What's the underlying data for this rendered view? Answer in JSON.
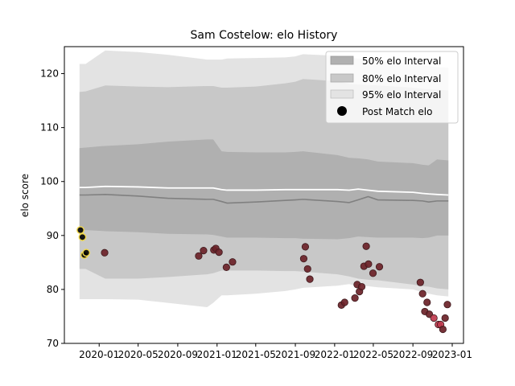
{
  "chart_data": {
    "type": "line",
    "title": "Sam Costelow: elo History",
    "xlabel": "",
    "ylabel": "elo score",
    "ylim": [
      70,
      125
    ],
    "xlim": [
      "2019-09-15",
      "2023-02-05"
    ],
    "yticks": [
      70,
      80,
      90,
      100,
      110,
      120
    ],
    "xticks": [
      "2020-01",
      "2020-05",
      "2020-09",
      "2021-01",
      "2021-05",
      "2021-09",
      "2022-01",
      "2022-05",
      "2022-09",
      "2023-01"
    ],
    "xtick_dates": [
      "2020-01-01",
      "2020-05-01",
      "2020-09-01",
      "2021-01-01",
      "2021-05-01",
      "2021-09-01",
      "2022-01-01",
      "2022-05-01",
      "2022-09-01",
      "2023-01-01"
    ],
    "grid": false,
    "legend": {
      "placement": "top-right",
      "entries": [
        "50% elo Interval",
        "80% elo Interval",
        "95% elo Interval",
        "Post Match elo"
      ]
    },
    "colors": {
      "band50": "#b0b0b0",
      "band80": "#c8c8c8",
      "band95": "#e3e3e3",
      "mean_line": "#ffffff",
      "median_line": "#808080",
      "marker": "#6b2228",
      "marker_recent": "#c0394e",
      "marker_first": "#f2d94c"
    },
    "bands": {
      "x": [
        "2019-11-01",
        "2019-11-20",
        "2020-01-20",
        "2020-05-01",
        "2020-08-01",
        "2020-12-01",
        "2020-12-20",
        "2021-01-15",
        "2021-02-01",
        "2021-05-01",
        "2021-08-01",
        "2021-09-01",
        "2021-09-25",
        "2022-01-10",
        "2022-02-15",
        "2022-03-15",
        "2022-04-15",
        "2022-05-15",
        "2022-09-01",
        "2022-10-01",
        "2022-10-20",
        "2022-11-15",
        "2022-12-20"
      ],
      "mean": [
        98.9,
        98.9,
        99.1,
        99.0,
        98.8,
        98.8,
        98.8,
        98.5,
        98.4,
        98.4,
        98.5,
        98.5,
        98.5,
        98.5,
        98.4,
        98.6,
        98.4,
        98.2,
        98.0,
        97.8,
        97.7,
        97.6,
        97.5
      ],
      "median": [
        97.5,
        97.5,
        97.6,
        97.3,
        96.9,
        96.7,
        96.7,
        96.3,
        96.0,
        96.2,
        96.5,
        96.6,
        96.7,
        96.3,
        96.1,
        96.6,
        97.2,
        96.6,
        96.5,
        96.4,
        96.2,
        96.4,
        96.4
      ],
      "p25": [
        91.0,
        91.0,
        90.8,
        90.6,
        90.3,
        90.2,
        90.1,
        89.8,
        89.6,
        89.6,
        89.5,
        89.5,
        89.4,
        89.3,
        89.5,
        89.8,
        89.7,
        89.6,
        89.6,
        89.5,
        89.6,
        90.0,
        90.0
      ],
      "p75": [
        106.2,
        106.3,
        106.6,
        106.9,
        107.4,
        107.8,
        107.8,
        105.6,
        105.5,
        105.4,
        105.4,
        105.5,
        105.6,
        104.9,
        104.4,
        104.3,
        104.1,
        103.7,
        103.4,
        103.1,
        103.0,
        104.1,
        103.9
      ],
      "p10": [
        83.8,
        83.8,
        82.0,
        82.0,
        82.3,
        82.8,
        83.0,
        83.5,
        83.5,
        83.5,
        83.4,
        83.4,
        83.3,
        82.8,
        82.4,
        82.0,
        81.8,
        81.7,
        80.9,
        80.6,
        80.5,
        80.2,
        80.0
      ],
      "p90": [
        116.6,
        116.7,
        117.8,
        117.6,
        117.5,
        117.7,
        117.7,
        117.4,
        117.4,
        117.6,
        118.2,
        118.5,
        119.0,
        118.6,
        118.1,
        118.0,
        117.9,
        117.8,
        117.4,
        117.2,
        117.1,
        117.0,
        116.9
      ],
      "p025": [
        78.2,
        78.2,
        78.2,
        78.1,
        77.5,
        76.7,
        77.5,
        78.9,
        78.9,
        79.2,
        79.7,
        80.0,
        80.3,
        80.7,
        81.0,
        80.6,
        80.6,
        80.4,
        80.0,
        79.5,
        79.2,
        78.9,
        78.7
      ],
      "p975": [
        121.8,
        121.8,
        124.3,
        124.0,
        123.5,
        122.6,
        122.6,
        122.6,
        122.8,
        122.9,
        123.0,
        123.2,
        123.6,
        123.3,
        122.9,
        122.8,
        122.6,
        122.3,
        121.9,
        121.6,
        121.4,
        121.2,
        121.1
      ]
    },
    "points": [
      {
        "date": "2019-11-04",
        "elo": 91.0,
        "color": "marker_first"
      },
      {
        "date": "2019-11-10",
        "elo": 89.7,
        "color": "marker_first"
      },
      {
        "date": "2019-11-16",
        "elo": 86.4,
        "color": "marker_first"
      },
      {
        "date": "2019-11-22",
        "elo": 86.8,
        "color": "marker_first"
      },
      {
        "date": "2020-01-18",
        "elo": 86.8,
        "color": "marker"
      },
      {
        "date": "2020-11-05",
        "elo": 86.2,
        "color": "marker"
      },
      {
        "date": "2020-11-20",
        "elo": 87.2,
        "color": "marker"
      },
      {
        "date": "2020-12-22",
        "elo": 87.3,
        "color": "marker"
      },
      {
        "date": "2020-12-28",
        "elo": 87.6,
        "color": "marker"
      },
      {
        "date": "2021-01-07",
        "elo": 86.9,
        "color": "marker"
      },
      {
        "date": "2021-01-30",
        "elo": 84.1,
        "color": "marker"
      },
      {
        "date": "2021-02-18",
        "elo": 85.1,
        "color": "marker"
      },
      {
        "date": "2021-09-27",
        "elo": 85.7,
        "color": "marker"
      },
      {
        "date": "2021-10-02",
        "elo": 87.9,
        "color": "marker"
      },
      {
        "date": "2021-10-09",
        "elo": 83.8,
        "color": "marker"
      },
      {
        "date": "2021-10-16",
        "elo": 81.9,
        "color": "marker"
      },
      {
        "date": "2022-01-22",
        "elo": 77.1,
        "color": "marker"
      },
      {
        "date": "2022-02-01",
        "elo": 77.6,
        "color": "marker"
      },
      {
        "date": "2022-03-05",
        "elo": 78.4,
        "color": "marker"
      },
      {
        "date": "2022-03-12",
        "elo": 80.9,
        "color": "marker"
      },
      {
        "date": "2022-03-19",
        "elo": 79.6,
        "color": "marker"
      },
      {
        "date": "2022-03-26",
        "elo": 80.5,
        "color": "marker"
      },
      {
        "date": "2022-04-02",
        "elo": 84.3,
        "color": "marker"
      },
      {
        "date": "2022-04-09",
        "elo": 88.0,
        "color": "marker"
      },
      {
        "date": "2022-04-16",
        "elo": 84.7,
        "color": "marker"
      },
      {
        "date": "2022-04-30",
        "elo": 83.0,
        "color": "marker"
      },
      {
        "date": "2022-05-20",
        "elo": 84.2,
        "color": "marker"
      },
      {
        "date": "2022-09-24",
        "elo": 81.3,
        "color": "marker"
      },
      {
        "date": "2022-10-01",
        "elo": 79.2,
        "color": "marker"
      },
      {
        "date": "2022-10-08",
        "elo": 75.9,
        "color": "marker"
      },
      {
        "date": "2022-10-15",
        "elo": 77.6,
        "color": "marker"
      },
      {
        "date": "2022-10-22",
        "elo": 75.4,
        "color": "marker"
      },
      {
        "date": "2022-11-05",
        "elo": 74.7,
        "color": "marker_recent"
      },
      {
        "date": "2022-11-19",
        "elo": 73.5,
        "color": "marker_recent"
      },
      {
        "date": "2022-11-26",
        "elo": 73.5,
        "color": "marker_recent"
      },
      {
        "date": "2022-12-03",
        "elo": 72.6,
        "color": "marker"
      },
      {
        "date": "2022-12-10",
        "elo": 74.7,
        "color": "marker"
      },
      {
        "date": "2022-12-17",
        "elo": 77.2,
        "color": "marker"
      }
    ]
  }
}
